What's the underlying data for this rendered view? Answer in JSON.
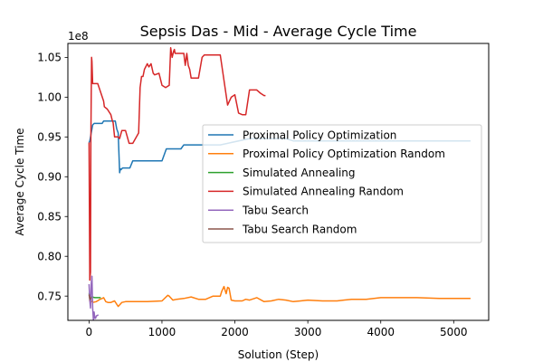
{
  "chart_data": {
    "type": "line",
    "title": "Sepsis Das - Mid - Average Cycle Time",
    "xlabel": "Solution (Step)",
    "ylabel": "Average Cycle Time",
    "y_offset_label": "1e8",
    "xlim": [
      -290,
      5480
    ],
    "ylim": [
      71.95,
      106.75
    ],
    "y_unit_multiplier": 1000000.0,
    "xticks": [
      0,
      1000,
      2000,
      3000,
      4000,
      5000
    ],
    "xtick_labels": [
      "0",
      "1000",
      "2000",
      "3000",
      "4000",
      "5000"
    ],
    "yticks": [
      75,
      80,
      85,
      90,
      95,
      100,
      105
    ],
    "ytick_labels": [
      "0.75",
      "0.80",
      "0.85",
      "0.90",
      "0.95",
      "1.00",
      "1.05"
    ],
    "grid": false,
    "legend_position": "center-right",
    "series": [
      {
        "name": "Proximal Policy Optimization",
        "color": "#1f77b4",
        "x": [
          0,
          10,
          50,
          70,
          120,
          180,
          200,
          220,
          260,
          300,
          360,
          380,
          400,
          420,
          430,
          440,
          460,
          500,
          560,
          600,
          700,
          800,
          960,
          1000,
          1060,
          1100,
          1200,
          1260,
          1300,
          1400,
          1600,
          1800,
          2200,
          2700,
          2800,
          3000,
          5230
        ],
        "y": [
          94.3,
          94.5,
          96.5,
          96.7,
          96.7,
          96.7,
          97.0,
          97.0,
          97.0,
          97.0,
          97.0,
          96.0,
          95.5,
          90.5,
          91.0,
          90.9,
          91.1,
          91.1,
          91.1,
          92.0,
          92.0,
          92.0,
          92.0,
          92.0,
          93.5,
          93.5,
          93.5,
          93.5,
          94.0,
          94.0,
          94.0,
          94.0,
          94.8,
          94.8,
          94.5,
          94.5,
          94.5
        ]
      },
      {
        "name": "Proximal Policy Optimization Random",
        "color": "#ff7f0e",
        "x": [
          0,
          20,
          50,
          100,
          150,
          180,
          200,
          230,
          260,
          300,
          350,
          400,
          450,
          500,
          600,
          700,
          800,
          1000,
          1080,
          1100,
          1150,
          1200,
          1300,
          1400,
          1500,
          1600,
          1700,
          1800,
          1820,
          1850,
          1880,
          1900,
          1920,
          1950,
          2000,
          2100,
          2150,
          2200,
          2300,
          2400,
          2500,
          2600,
          2700,
          2800,
          2900,
          3000,
          3200,
          3400,
          3600,
          3800,
          4000,
          4200,
          4500,
          4800,
          5230
        ],
        "y": [
          74.4,
          74.5,
          74.2,
          74.3,
          74.6,
          74.7,
          74.8,
          74.3,
          74.2,
          74.2,
          74.4,
          73.7,
          74.2,
          74.3,
          74.3,
          74.3,
          74.3,
          74.4,
          75.1,
          75.0,
          74.5,
          74.6,
          74.7,
          74.9,
          74.6,
          74.6,
          75.0,
          75.0,
          75.6,
          76.2,
          75.3,
          76.1,
          76.0,
          74.5,
          74.4,
          74.4,
          74.6,
          74.5,
          74.8,
          74.3,
          74.4,
          74.6,
          74.5,
          74.3,
          74.4,
          74.5,
          74.4,
          74.4,
          74.6,
          74.6,
          74.8,
          74.8,
          74.8,
          74.7,
          74.7
        ]
      },
      {
        "name": "Simulated Annealing",
        "color": "#2ca02c",
        "x": [
          0,
          20,
          40,
          80,
          120,
          160
        ],
        "y": [
          75.4,
          74.8,
          74.9,
          74.8,
          74.8,
          74.8
        ]
      },
      {
        "name": "Simulated Annealing Random",
        "color": "#d62728",
        "x": [
          0,
          10,
          20,
          25,
          30,
          35,
          40,
          50,
          60,
          80,
          120,
          200,
          210,
          250,
          300,
          320,
          330,
          350,
          400,
          420,
          450,
          500,
          550,
          600,
          680,
          700,
          720,
          740,
          760,
          800,
          820,
          850,
          880,
          900,
          960,
          1000,
          1050,
          1100,
          1120,
          1140,
          1160,
          1170,
          1180,
          1200,
          1250,
          1300,
          1320,
          1340,
          1360,
          1380,
          1400,
          1450,
          1500,
          1550,
          1580,
          1600,
          1700,
          1800,
          1900,
          1950,
          2000,
          2050,
          2100,
          2150,
          2200,
          2250,
          2300,
          2350,
          2400,
          2420
        ],
        "y": [
          94.3,
          77.0,
          78.0,
          94.5,
          100.2,
          105.0,
          104.5,
          101.7,
          101.7,
          101.7,
          101.7,
          99.5,
          98.8,
          98.5,
          97.8,
          97.0,
          96.8,
          95.0,
          95.0,
          94.8,
          95.8,
          95.8,
          94.2,
          94.2,
          95.5,
          101.2,
          102.6,
          102.6,
          103.5,
          104.2,
          103.8,
          104.2,
          103.0,
          102.8,
          103.0,
          101.5,
          101.2,
          101.5,
          106.2,
          105.0,
          105.8,
          106.0,
          105.5,
          105.5,
          105.5,
          105.5,
          104.0,
          105.5,
          104.0,
          103.5,
          102.4,
          102.4,
          102.4,
          105.0,
          105.3,
          105.3,
          105.3,
          105.3,
          99.0,
          100.0,
          100.3,
          98.0,
          97.8,
          97.8,
          100.9,
          100.9,
          100.9,
          100.5,
          100.2,
          100.2
        ]
      },
      {
        "name": "Tabu Search",
        "color": "#9467bd",
        "x": [
          0,
          10,
          20,
          30,
          40,
          50,
          60,
          70,
          80,
          90,
          100,
          120,
          130
        ],
        "y": [
          76.5,
          74.5,
          73.5,
          76.5,
          77.5,
          73.5,
          72.0,
          73.0,
          72.2,
          72.2,
          72.5,
          72.6,
          72.6
        ]
      },
      {
        "name": "Tabu Search Random",
        "color": "#8c564b",
        "x": [
          0,
          10,
          20,
          30
        ],
        "y": [
          75.2,
          74.6,
          74.8,
          74.6
        ]
      }
    ]
  }
}
